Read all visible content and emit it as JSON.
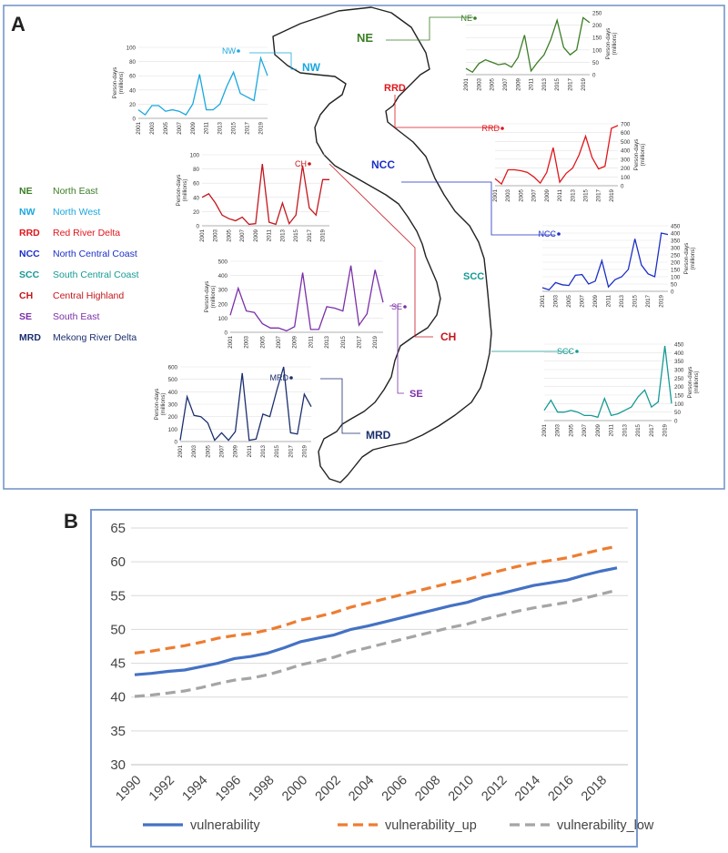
{
  "panel_a": {
    "label": "A",
    "legend": [
      {
        "code": "NE",
        "name": "North East",
        "color": "#3a7d24"
      },
      {
        "code": "NW",
        "name": "North West",
        "color": "#19a7e0"
      },
      {
        "code": "RRD",
        "name": "Red River Delta",
        "color": "#e0161b"
      },
      {
        "code": "NCC",
        "name": "North Central Coast",
        "color": "#1c2fc7"
      },
      {
        "code": "SCC",
        "name": "South Central Coast",
        "color": "#159a94"
      },
      {
        "code": "CH",
        "name": "Central Highland",
        "color": "#c4161c"
      },
      {
        "code": "SE",
        "name": "South East",
        "color": "#7b2fa8"
      },
      {
        "code": "MRD",
        "name": "Mekong River Delta",
        "color": "#1b2f6e"
      }
    ]
  },
  "panel_b": {
    "label": "B"
  },
  "chart_data": [
    {
      "type": "line",
      "title": "NE",
      "ylabel": "Person-days (millions)",
      "ylim": [
        0,
        250
      ],
      "yticks": [
        0,
        50,
        100,
        150,
        200,
        250
      ],
      "x": [
        2001,
        2002,
        2003,
        2004,
        2005,
        2006,
        2007,
        2008,
        2009,
        2010,
        2011,
        2012,
        2013,
        2014,
        2015,
        2016,
        2017,
        2018,
        2019,
        2020
      ],
      "xticks": [
        "2001",
        "2003",
        "2005",
        "2007",
        "2009",
        "2011",
        "2013",
        "2015",
        "2017",
        "2019"
      ],
      "values": [
        25,
        10,
        45,
        60,
        50,
        40,
        45,
        30,
        70,
        160,
        15,
        50,
        80,
        140,
        220,
        110,
        80,
        100,
        230,
        210
      ],
      "series_name": "NE",
      "color": "#3a7d24"
    },
    {
      "type": "line",
      "title": "NW",
      "ylabel": "Person-days (millions)",
      "ylim": [
        0,
        100
      ],
      "yticks": [
        0,
        20,
        40,
        60,
        80,
        100
      ],
      "x": [
        2001,
        2002,
        2003,
        2004,
        2005,
        2006,
        2007,
        2008,
        2009,
        2010,
        2011,
        2012,
        2013,
        2014,
        2015,
        2016,
        2017,
        2018,
        2019,
        2020
      ],
      "xticks": [
        "2001",
        "2003",
        "2005",
        "2007",
        "2009",
        "2011",
        "2013",
        "2015",
        "2017",
        "2019"
      ],
      "values": [
        12,
        5,
        18,
        18,
        10,
        12,
        10,
        5,
        20,
        62,
        12,
        12,
        20,
        45,
        65,
        35,
        30,
        25,
        85,
        60
      ],
      "series_name": "NW",
      "color": "#19a7e0"
    },
    {
      "type": "line",
      "title": "RRD",
      "ylabel": "Person-days (millions)",
      "ylim": [
        0,
        700
      ],
      "yticks": [
        0,
        100,
        200,
        300,
        400,
        500,
        600,
        700
      ],
      "x": [
        2001,
        2002,
        2003,
        2004,
        2005,
        2006,
        2007,
        2008,
        2009,
        2010,
        2011,
        2012,
        2013,
        2014,
        2015,
        2016,
        2017,
        2018,
        2019,
        2020
      ],
      "xticks": [
        "2001",
        "2003",
        "2005",
        "2007",
        "2009",
        "2011",
        "2013",
        "2015",
        "2017",
        "2019"
      ],
      "values": [
        80,
        20,
        180,
        180,
        170,
        150,
        100,
        30,
        150,
        430,
        40,
        140,
        200,
        350,
        560,
        320,
        190,
        220,
        650,
        680
      ],
      "series_name": "RRD",
      "color": "#e0161b"
    },
    {
      "type": "line",
      "title": "CH",
      "ylabel": "Person-days (millions)",
      "ylim": [
        0,
        100
      ],
      "yticks": [
        0,
        20,
        40,
        60,
        80,
        100
      ],
      "x": [
        2001,
        2002,
        2003,
        2004,
        2005,
        2006,
        2007,
        2008,
        2009,
        2010,
        2011,
        2012,
        2013,
        2014,
        2015,
        2016,
        2017,
        2018,
        2019,
        2020
      ],
      "xticks": [
        "2001",
        "2003",
        "2005",
        "2007",
        "2009",
        "2011",
        "2013",
        "2015",
        "2017",
        "2019"
      ],
      "values": [
        40,
        45,
        32,
        15,
        10,
        7,
        12,
        2,
        3,
        87,
        5,
        2,
        32,
        3,
        15,
        85,
        25,
        15,
        65,
        65
      ],
      "series_name": "CH",
      "color": "#c4161c"
    },
    {
      "type": "line",
      "title": "NCC",
      "ylabel": "Person-days (millions)",
      "ylim": [
        0,
        450
      ],
      "yticks": [
        0,
        50,
        100,
        150,
        200,
        250,
        300,
        350,
        400,
        450
      ],
      "x": [
        2001,
        2002,
        2003,
        2004,
        2005,
        2006,
        2007,
        2008,
        2009,
        2010,
        2011,
        2012,
        2013,
        2014,
        2015,
        2016,
        2017,
        2018,
        2019,
        2020
      ],
      "xticks": [
        "2001",
        "2003",
        "2005",
        "2007",
        "2009",
        "2011",
        "2013",
        "2015",
        "2017",
        "2019"
      ],
      "values": [
        25,
        10,
        60,
        45,
        40,
        110,
        115,
        50,
        70,
        210,
        30,
        80,
        100,
        150,
        360,
        180,
        120,
        100,
        400,
        390
      ],
      "series_name": "NCC",
      "color": "#1c2fc7"
    },
    {
      "type": "line",
      "title": "SE",
      "ylabel": "Person-days (millions)",
      "ylim": [
        0,
        500
      ],
      "yticks": [
        0,
        100,
        200,
        300,
        400,
        500
      ],
      "x": [
        2001,
        2002,
        2003,
        2004,
        2005,
        2006,
        2007,
        2008,
        2009,
        2010,
        2011,
        2012,
        2013,
        2014,
        2015,
        2016,
        2017,
        2018,
        2019,
        2020
      ],
      "xticks": [
        "2001",
        "2003",
        "2005",
        "2007",
        "2009",
        "2011",
        "2013",
        "2015",
        "2017",
        "2019"
      ],
      "values": [
        120,
        310,
        150,
        140,
        60,
        30,
        30,
        10,
        40,
        420,
        20,
        20,
        180,
        170,
        150,
        470,
        50,
        130,
        440,
        210
      ],
      "series_name": "SE",
      "color": "#7b2fa8"
    },
    {
      "type": "line",
      "title": "SCC",
      "ylabel": "Person-days (millions)",
      "ylim": [
        0,
        450
      ],
      "yticks": [
        0,
        50,
        100,
        150,
        200,
        250,
        300,
        350,
        400,
        450
      ],
      "x": [
        2001,
        2002,
        2003,
        2004,
        2005,
        2006,
        2007,
        2008,
        2009,
        2010,
        2011,
        2012,
        2013,
        2014,
        2015,
        2016,
        2017,
        2018,
        2019,
        2020
      ],
      "xticks": [
        "2001",
        "2003",
        "2005",
        "2007",
        "2009",
        "2011",
        "2013",
        "2015",
        "2017",
        "2019"
      ],
      "values": [
        60,
        120,
        50,
        50,
        60,
        50,
        30,
        30,
        20,
        130,
        30,
        40,
        60,
        80,
        140,
        180,
        80,
        110,
        440,
        100
      ],
      "series_name": "SCC",
      "color": "#159a94"
    },
    {
      "type": "line",
      "title": "MRD",
      "ylabel": "Person-days (millions)",
      "ylim": [
        0,
        600
      ],
      "yticks": [
        0,
        100,
        200,
        300,
        400,
        500,
        600
      ],
      "x": [
        2001,
        2002,
        2003,
        2004,
        2005,
        2006,
        2007,
        2008,
        2009,
        2010,
        2011,
        2012,
        2013,
        2014,
        2015,
        2016,
        2017,
        2018,
        2019,
        2020
      ],
      "xticks": [
        "2001",
        "2003",
        "2005",
        "2007",
        "2009",
        "2011",
        "2013",
        "2015",
        "2017",
        "2019"
      ],
      "values": [
        10,
        360,
        210,
        200,
        150,
        10,
        70,
        10,
        80,
        550,
        10,
        20,
        220,
        200,
        410,
        600,
        70,
        60,
        380,
        280
      ],
      "series_name": "MRD",
      "color": "#1b2f6e"
    },
    {
      "type": "line",
      "title": "",
      "xlabel": "",
      "ylabel": "",
      "ylim": [
        30,
        65
      ],
      "yticks": [
        30,
        35,
        40,
        45,
        50,
        55,
        60,
        65
      ],
      "x": [
        1990,
        1991,
        1992,
        1993,
        1994,
        1995,
        1996,
        1997,
        1998,
        1999,
        2000,
        2001,
        2002,
        2003,
        2004,
        2005,
        2006,
        2007,
        2008,
        2009,
        2010,
        2011,
        2012,
        2013,
        2014,
        2015,
        2016,
        2017,
        2018,
        2019
      ],
      "xticks": [
        "1990",
        "1992",
        "1994",
        "1996",
        "1998",
        "2000",
        "2002",
        "2004",
        "2006",
        "2008",
        "2010",
        "2012",
        "2014",
        "2016",
        "2018"
      ],
      "series": [
        {
          "name": "vulnerability",
          "color": "#4472c4",
          "dash": "solid",
          "values": [
            43.3,
            43.5,
            43.8,
            44.0,
            44.5,
            45.0,
            45.7,
            46.0,
            46.5,
            47.3,
            48.2,
            48.7,
            49.2,
            50.0,
            50.5,
            51.1,
            51.7,
            52.3,
            52.9,
            53.5,
            54.0,
            54.8,
            55.3,
            55.9,
            56.5,
            56.9,
            57.3,
            58.0,
            58.6,
            59.1
          ]
        },
        {
          "name": "vulnerability_up",
          "color": "#ed7d31",
          "dash": "dashed",
          "values": [
            46.5,
            46.8,
            47.2,
            47.6,
            48.1,
            48.7,
            49.1,
            49.4,
            49.9,
            50.6,
            51.4,
            51.9,
            52.5,
            53.3,
            53.9,
            54.5,
            55.1,
            55.7,
            56.3,
            56.9,
            57.4,
            58.1,
            58.7,
            59.3,
            59.8,
            60.2,
            60.6,
            61.2,
            61.8,
            62.3
          ]
        },
        {
          "name": "vulnerability_low",
          "color": "#a5a5a5",
          "dash": "dashed",
          "values": [
            40.1,
            40.3,
            40.6,
            40.9,
            41.4,
            42.0,
            42.5,
            42.8,
            43.3,
            44.0,
            44.8,
            45.3,
            45.9,
            46.7,
            47.3,
            47.9,
            48.5,
            49.1,
            49.7,
            50.3,
            50.8,
            51.5,
            52.1,
            52.7,
            53.2,
            53.6,
            54.0,
            54.6,
            55.2,
            55.8
          ]
        }
      ],
      "legend": [
        "vulnerability",
        "vulnerability_up",
        "vulnerability_low"
      ]
    }
  ]
}
